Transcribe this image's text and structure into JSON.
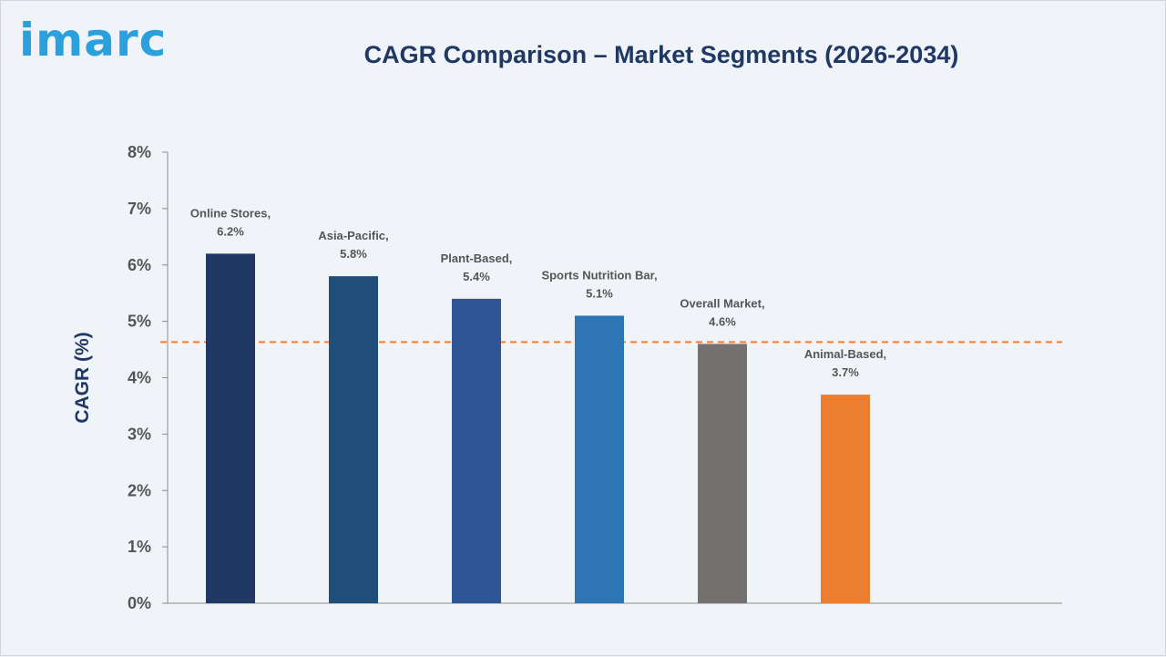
{
  "header": {
    "logo_text": "imarc",
    "title": "CAGR Comparison – Market Segments (2026-2034)"
  },
  "chart_data": {
    "type": "bar",
    "title": "CAGR Comparison – Market Segments (2026-2034)",
    "ylabel": "CAGR (%)",
    "xlabel": "",
    "ylim": [
      0,
      8
    ],
    "y_ticks": [
      "0%",
      "1%",
      "2%",
      "3%",
      "4%",
      "5%",
      "6%",
      "7%",
      "8%"
    ],
    "categories": [
      "Online Stores",
      "Asia-Pacific",
      "Plant-Based",
      "Sports Nutrition Bar",
      "Overall Market",
      "Animal-Based"
    ],
    "values": [
      6.2,
      5.8,
      5.4,
      5.1,
      4.6,
      3.7
    ],
    "data_labels": [
      "Online Stores,\n6.2%",
      "Asia-Pacific,\n5.8%",
      "Plant-Based,\n5.4%",
      "Sports Nutrition Bar,\n5.1%",
      "Overall Market,\n4.6%",
      "Animal-Based,\n3.7%"
    ],
    "bar_colors": [
      "#1f3864",
      "#1f4e79",
      "#2f5597",
      "#2e75b6",
      "#767171",
      "#ed7d31"
    ],
    "reference_line": {
      "value": 4.6,
      "style": "dashed",
      "color": "#ed7d31"
    },
    "grid": false,
    "legend": "none"
  }
}
